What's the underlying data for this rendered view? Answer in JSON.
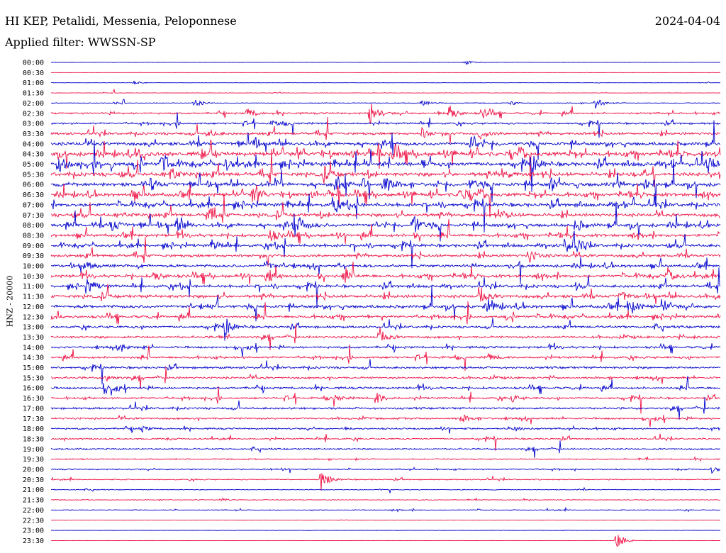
{
  "header": {
    "station": "HI KEP, Petalidi, Messenia, Peloponnese",
    "date": "2024-04-04",
    "filter": "Applied filter: WWSSN-SP"
  },
  "chart_data": {
    "type": "line",
    "title": "HI KEP, Petalidi, Messenia, Peloponnese",
    "ylabel": "HNZ - 20000",
    "row_interval_minutes": 30,
    "colors": [
      "#0000cc",
      "#ee1144"
    ],
    "tick_labels": [
      "00:00",
      "00:30",
      "01:00",
      "01:30",
      "02:00",
      "02:30",
      "03:00",
      "03:30",
      "04:00",
      "04:30",
      "05:00",
      "05:30",
      "06:00",
      "06:30",
      "07:00",
      "07:30",
      "08:00",
      "08:30",
      "09:00",
      "09:30",
      "10:00",
      "10:30",
      "11:00",
      "11:30",
      "12:00",
      "12:30",
      "13:00",
      "13:30",
      "14:00",
      "14:30",
      "15:00",
      "15:30",
      "16:00",
      "16:30",
      "17:00",
      "17:30",
      "18:00",
      "18:30",
      "19:00",
      "19:30",
      "20:00",
      "20:30",
      "21:00",
      "21:30",
      "22:00",
      "22:30",
      "23:00",
      "23:30"
    ],
    "noise_level": [
      0.2,
      0.1,
      0.2,
      0.3,
      0.6,
      1.2,
      1.2,
      1.6,
      2.2,
      2.6,
      2.6,
      2.4,
      2.4,
      2.2,
      2.3,
      2.1,
      2.2,
      1.9,
      1.9,
      1.8,
      1.8,
      1.9,
      1.8,
      2.0,
      2.0,
      1.7,
      1.5,
      1.5,
      1.4,
      1.4,
      1.4,
      1.3,
      1.4,
      1.3,
      1.3,
      1.2,
      1.1,
      1.0,
      1.0,
      0.8,
      0.8,
      0.7,
      0.5,
      0.5,
      0.6,
      0.2,
      0.2,
      0.1
    ],
    "events": [
      {
        "row": 0,
        "minute": 18.5,
        "amp": 4
      },
      {
        "row": 2,
        "minute": 3.7,
        "amp": 3
      },
      {
        "row": 4,
        "minute": 6.4,
        "amp": 6
      },
      {
        "row": 4,
        "minute": 16.6,
        "amp": 4
      },
      {
        "row": 4,
        "minute": 20.6,
        "amp": 3
      },
      {
        "row": 4,
        "minute": 24.4,
        "amp": 8
      },
      {
        "row": 5,
        "minute": 8.8,
        "amp": 9
      },
      {
        "row": 5,
        "minute": 14.3,
        "amp": 17
      },
      {
        "row": 5,
        "minute": 17.8,
        "amp": 14
      },
      {
        "row": 5,
        "minute": 19.3,
        "amp": 9
      },
      {
        "row": 6,
        "minute": 9.9,
        "amp": 4
      },
      {
        "row": 7,
        "minute": 7.0,
        "amp": 6
      },
      {
        "row": 7,
        "minute": 16.6,
        "amp": 8
      },
      {
        "row": 7,
        "minute": 19.2,
        "amp": 9
      },
      {
        "row": 8,
        "minute": 9.0,
        "amp": 9
      },
      {
        "row": 8,
        "minute": 18.8,
        "amp": 12
      },
      {
        "row": 9,
        "minute": 15.3,
        "amp": 12
      },
      {
        "row": 10,
        "minute": 0.3,
        "amp": 12
      },
      {
        "row": 10,
        "minute": 4.9,
        "amp": 14
      },
      {
        "row": 10,
        "minute": 7.8,
        "amp": 9
      },
      {
        "row": 10,
        "minute": 21.6,
        "amp": 11
      },
      {
        "row": 10,
        "minute": 29.4,
        "amp": 11
      },
      {
        "row": 11,
        "minute": 5.3,
        "amp": 9
      },
      {
        "row": 11,
        "minute": 12.2,
        "amp": 7
      },
      {
        "row": 11,
        "minute": 20.2,
        "amp": 8
      },
      {
        "row": 12,
        "minute": 4.4,
        "amp": 9
      },
      {
        "row": 12,
        "minute": 12.8,
        "amp": 10
      },
      {
        "row": 12,
        "minute": 14.9,
        "amp": 14
      },
      {
        "row": 12,
        "minute": 18.8,
        "amp": 9
      },
      {
        "row": 12,
        "minute": 22.4,
        "amp": 11
      },
      {
        "row": 13,
        "minute": 3.6,
        "amp": 7
      },
      {
        "row": 13,
        "minute": 9.0,
        "amp": 11
      },
      {
        "row": 13,
        "minute": 18.3,
        "amp": 11
      },
      {
        "row": 14,
        "minute": 12.6,
        "amp": 10
      },
      {
        "row": 15,
        "minute": 7.0,
        "amp": 12
      },
      {
        "row": 15,
        "minute": 20.1,
        "amp": 10
      },
      {
        "row": 16,
        "minute": 2.7,
        "amp": 10
      },
      {
        "row": 16,
        "minute": 5.6,
        "amp": 11
      },
      {
        "row": 16,
        "minute": 11.1,
        "amp": 13
      },
      {
        "row": 16,
        "minute": 16.2,
        "amp": 17
      },
      {
        "row": 16,
        "minute": 23.5,
        "amp": 10
      },
      {
        "row": 17,
        "minute": 9.8,
        "amp": 10
      },
      {
        "row": 18,
        "minute": 7.2,
        "amp": 8
      },
      {
        "row": 18,
        "minute": 23.0,
        "amp": 12
      },
      {
        "row": 18,
        "minute": 23.4,
        "amp": 16
      },
      {
        "row": 19,
        "minute": 21.4,
        "amp": 10
      },
      {
        "row": 20,
        "minute": 1.5,
        "amp": 7
      },
      {
        "row": 20,
        "minute": 9.6,
        "amp": 7
      },
      {
        "row": 21,
        "minute": 4.6,
        "amp": 8
      },
      {
        "row": 21,
        "minute": 9.8,
        "amp": 10
      },
      {
        "row": 21,
        "minute": 13.1,
        "amp": 12
      },
      {
        "row": 21,
        "minute": 27.6,
        "amp": 10
      },
      {
        "row": 22,
        "minute": 1.6,
        "amp": 14
      },
      {
        "row": 23,
        "minute": 19.2,
        "amp": 13
      },
      {
        "row": 23,
        "minute": 25.5,
        "amp": 9
      },
      {
        "row": 24,
        "minute": 19.6,
        "amp": 9
      },
      {
        "row": 24,
        "minute": 25.9,
        "amp": 14
      },
      {
        "row": 24,
        "minute": 27.4,
        "amp": 9
      },
      {
        "row": 26,
        "minute": 7.8,
        "amp": 14
      },
      {
        "row": 27,
        "minute": 14.7,
        "amp": 10
      },
      {
        "row": 28,
        "minute": 3.1,
        "amp": 5
      },
      {
        "row": 29,
        "minute": 19.6,
        "amp": 5
      },
      {
        "row": 31,
        "minute": 2.4,
        "amp": 6
      },
      {
        "row": 32,
        "minute": 2.4,
        "amp": 11
      },
      {
        "row": 33,
        "minute": 12.6,
        "amp": 8
      },
      {
        "row": 33,
        "minute": 14.5,
        "amp": 11
      },
      {
        "row": 33,
        "minute": 20.6,
        "amp": 6
      },
      {
        "row": 35,
        "minute": 18.4,
        "amp": 6
      },
      {
        "row": 36,
        "minute": 4.0,
        "amp": 5
      },
      {
        "row": 36,
        "minute": 20.7,
        "amp": 5
      },
      {
        "row": 40,
        "minute": 29.6,
        "amp": 5
      },
      {
        "row": 41,
        "minute": 12.1,
        "amp": 16
      },
      {
        "row": 43,
        "minute": 7.6,
        "amp": 3
      },
      {
        "row": 47,
        "minute": 25.3,
        "amp": 17
      }
    ]
  }
}
